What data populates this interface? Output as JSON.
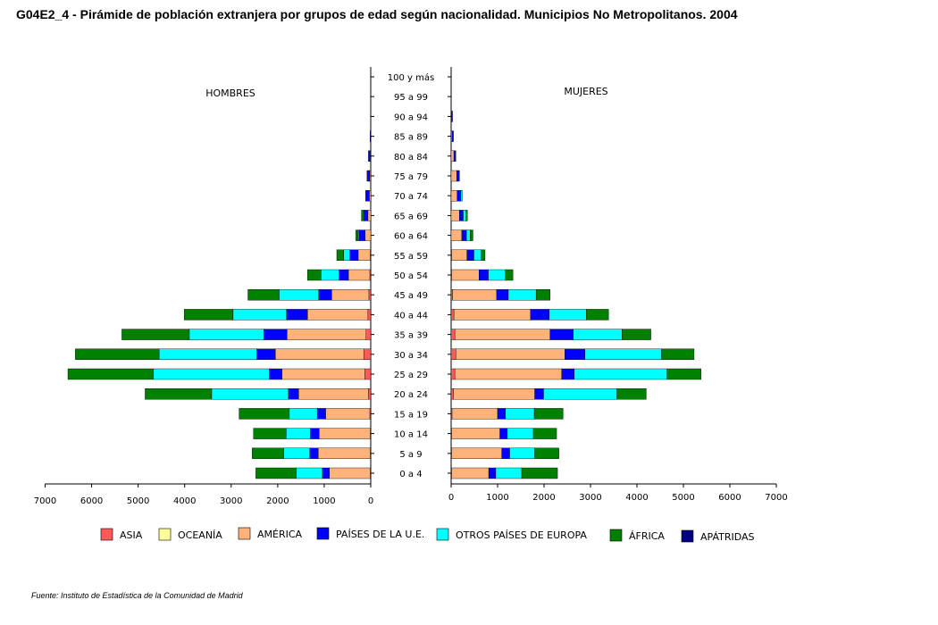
{
  "title": "G04E2_4 - Pirámide de población extranjera por grupos de edad según nacionalidad.  Municipios No Metropolitanos. 2004",
  "source": "Fuente: Instituto de Estadística de la Comunidad de Madrid",
  "colors": {
    "ASIA": "#ff5a5a",
    "OCEANÍA": "#ffff99",
    "AMÉRICA": "#ffb27a",
    "PAÍSES DE LA U.E.": "#0000ff",
    "OTROS PAÍSES DE EUROPA": "#00ffff",
    "ÁFRICA": "#008000",
    "APÁTRIDAS": "#000080"
  },
  "chart_data": {
    "type": "bar",
    "orientation": "population-pyramid",
    "left_label": "HOMBRES",
    "right_label": "MUJERES",
    "xlim": [
      0,
      7000
    ],
    "x_ticks": [
      0,
      1000,
      2000,
      3000,
      4000,
      5000,
      6000,
      7000
    ],
    "legend": [
      "ASIA",
      "OCEANÍA",
      "AMÉRICA",
      "PAÍSES DE LA U.E.",
      "OTROS PAÍSES DE EUROPA",
      "ÁFRICA",
      "APÁTRIDAS"
    ],
    "categories": [
      "100 y más",
      "95 a 99",
      "90 a 94",
      "85 a 89",
      "80 a 84",
      "75 a 79",
      "70 a 74",
      "65 a 69",
      "60 a 64",
      "55 a 59",
      "50 a 54",
      "45 a 49",
      "40 a  44",
      "35 a 39",
      "30 a 34",
      "25 a 29",
      "20 a 24",
      "15 a 19",
      "10 a 14",
      "5 a 9",
      "0 a 4"
    ],
    "series_order": [
      "ASIA",
      "OCEANÍA",
      "AMÉRICA",
      "PAÍSES DE LA U.E.",
      "OTROS PAÍSES DE EUROPA",
      "ÁFRICA",
      "APÁTRIDAS"
    ],
    "hombres": [
      [
        0,
        0,
        0,
        0,
        0,
        0,
        0
      ],
      [
        0,
        0,
        0,
        0,
        0,
        0,
        0
      ],
      [
        0,
        0,
        0,
        5,
        0,
        0,
        0
      ],
      [
        0,
        0,
        0,
        15,
        0,
        0,
        0
      ],
      [
        0,
        0,
        10,
        40,
        0,
        0,
        0
      ],
      [
        0,
        0,
        20,
        60,
        0,
        0,
        0
      ],
      [
        0,
        0,
        30,
        80,
        0,
        0,
        0
      ],
      [
        0,
        0,
        60,
        90,
        0,
        50,
        0
      ],
      [
        0,
        0,
        120,
        130,
        20,
        50,
        0
      ],
      [
        10,
        0,
        260,
        180,
        130,
        150,
        0
      ],
      [
        20,
        0,
        460,
        200,
        390,
        290,
        0
      ],
      [
        40,
        0,
        800,
        280,
        850,
        670,
        0
      ],
      [
        60,
        0,
        1300,
        450,
        1150,
        1050,
        0
      ],
      [
        100,
        0,
        1700,
        500,
        1600,
        1450,
        0
      ],
      [
        150,
        0,
        1900,
        400,
        2100,
        1800,
        0
      ],
      [
        130,
        0,
        1780,
        270,
        2490,
        1840,
        0
      ],
      [
        50,
        0,
        1500,
        220,
        1650,
        1430,
        0
      ],
      [
        20,
        0,
        950,
        180,
        600,
        1080,
        0
      ],
      [
        10,
        0,
        1100,
        190,
        520,
        700,
        0
      ],
      [
        10,
        0,
        1120,
        180,
        560,
        680,
        0
      ],
      [
        10,
        0,
        880,
        150,
        560,
        870,
        0
      ]
    ],
    "mujeres": [
      [
        0,
        0,
        0,
        0,
        0,
        0,
        0
      ],
      [
        0,
        0,
        0,
        0,
        0,
        0,
        0
      ],
      [
        0,
        0,
        10,
        20,
        0,
        0,
        0
      ],
      [
        0,
        0,
        20,
        30,
        0,
        0,
        0
      ],
      [
        0,
        0,
        60,
        40,
        0,
        0,
        0
      ],
      [
        0,
        0,
        120,
        60,
        0,
        0,
        0
      ],
      [
        0,
        0,
        130,
        80,
        30,
        0,
        0
      ],
      [
        0,
        0,
        180,
        80,
        60,
        30,
        0
      ],
      [
        0,
        0,
        230,
        100,
        80,
        60,
        0
      ],
      [
        10,
        0,
        330,
        150,
        160,
        80,
        0
      ],
      [
        10,
        0,
        590,
        200,
        370,
        160,
        0
      ],
      [
        30,
        0,
        950,
        250,
        600,
        300,
        0
      ],
      [
        60,
        0,
        1650,
        400,
        800,
        480,
        0
      ],
      [
        80,
        0,
        2050,
        500,
        1050,
        620,
        0
      ],
      [
        100,
        0,
        2350,
        430,
        1650,
        700,
        0
      ],
      [
        80,
        0,
        2300,
        270,
        2000,
        730,
        0
      ],
      [
        50,
        0,
        1750,
        190,
        1580,
        630,
        0
      ],
      [
        20,
        0,
        980,
        170,
        620,
        620,
        0
      ],
      [
        10,
        0,
        1040,
        160,
        560,
        500,
        0
      ],
      [
        10,
        0,
        1080,
        170,
        540,
        520,
        0
      ],
      [
        10,
        0,
        800,
        150,
        560,
        770,
        0
      ]
    ]
  }
}
